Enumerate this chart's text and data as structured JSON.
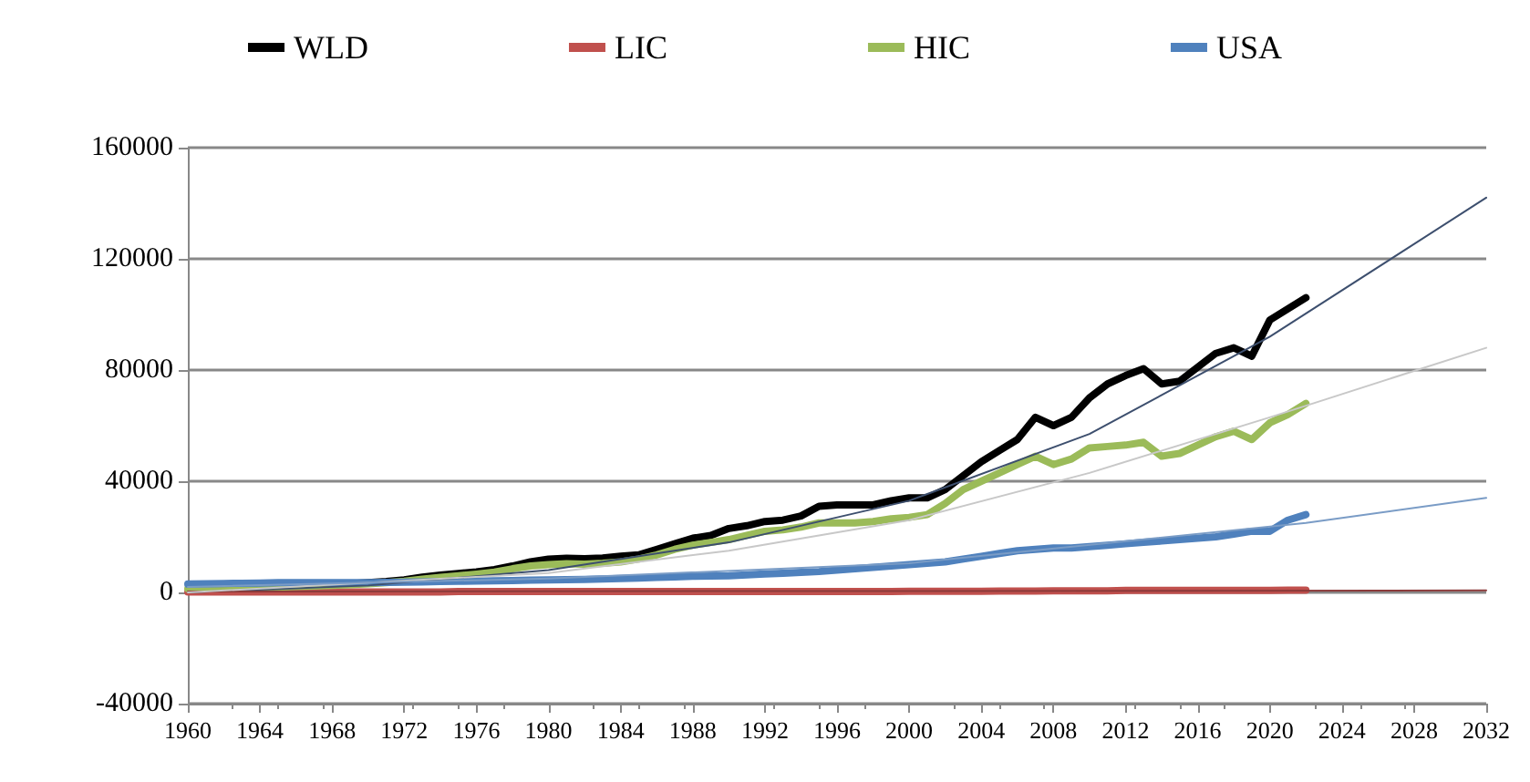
{
  "chart_data": {
    "type": "line",
    "x": [
      1960,
      1961,
      1962,
      1963,
      1964,
      1965,
      1966,
      1967,
      1968,
      1969,
      1970,
      1971,
      1972,
      1973,
      1974,
      1975,
      1976,
      1977,
      1978,
      1979,
      1980,
      1981,
      1982,
      1983,
      1984,
      1985,
      1986,
      1987,
      1988,
      1989,
      1990,
      1991,
      1992,
      1993,
      1994,
      1995,
      1996,
      1997,
      1998,
      1999,
      2000,
      2001,
      2002,
      2003,
      2004,
      2005,
      2006,
      2007,
      2008,
      2009,
      2010,
      2011,
      2012,
      2013,
      2014,
      2015,
      2016,
      2017,
      2018,
      2019,
      2020,
      2021,
      2022
    ],
    "series": [
      {
        "name": "WLD",
        "color": "#000000",
        "values": [
          null,
          null,
          null,
          null,
          2000,
          2200,
          2400,
          2600,
          2800,
          3100,
          3500,
          3900,
          4500,
          5500,
          6200,
          6800,
          7400,
          8200,
          9500,
          11000,
          12000,
          12300,
          12100,
          12400,
          13000,
          13500,
          15500,
          17500,
          19500,
          20500,
          23000,
          24000,
          25500,
          26000,
          27500,
          31000,
          31500,
          31500,
          31500,
          33000,
          34000,
          34000,
          37000,
          42000,
          47000,
          51000,
          55000,
          63000,
          60000,
          63000,
          70000,
          75000,
          78000,
          80500,
          75000,
          76000,
          81000,
          86000,
          88000,
          85000,
          98000,
          102000,
          106000
        ]
      },
      {
        "name": "LIC",
        "color": "#c0504d",
        "values": [
          200,
          200,
          200,
          200,
          200,
          200,
          200,
          200,
          200,
          200,
          200,
          200,
          200,
          200,
          200,
          300,
          300,
          300,
          300,
          300,
          300,
          300,
          300,
          300,
          300,
          300,
          300,
          300,
          300,
          300,
          300,
          300,
          300,
          300,
          300,
          300,
          300,
          300,
          300,
          300,
          400,
          400,
          400,
          400,
          400,
          500,
          500,
          500,
          600,
          600,
          600,
          600,
          700,
          700,
          700,
          700,
          700,
          700,
          700,
          700,
          700,
          800,
          800
        ]
      },
      {
        "name": "HIC",
        "color": "#9bbb59",
        "values": [
          1300,
          1400,
          1500,
          1600,
          1700,
          1900,
          2100,
          2300,
          2500,
          2800,
          3100,
          3500,
          4000,
          4800,
          5400,
          6000,
          6600,
          7300,
          8500,
          9500,
          10000,
          10300,
          10200,
          10500,
          11000,
          12000,
          13500,
          15500,
          17000,
          18000,
          19000,
          20500,
          22000,
          22500,
          23500,
          25000,
          25000,
          25000,
          25500,
          26500,
          27000,
          28000,
          32000,
          37000,
          40000,
          43000,
          46000,
          49000,
          46000,
          48000,
          52000,
          52500,
          53000,
          54000,
          49000,
          50000,
          53000,
          56000,
          58000,
          55000,
          61000,
          64000,
          68000
        ]
      },
      {
        "name": "USA",
        "color": "#4f81bd",
        "values": [
          3000,
          3100,
          3200,
          3300,
          3400,
          3500,
          3500,
          3500,
          3500,
          3500,
          3500,
          3600,
          3700,
          3800,
          3900,
          4000,
          4100,
          4200,
          4300,
          4400,
          4500,
          4600,
          4700,
          4800,
          5000,
          5200,
          5400,
          5600,
          5800,
          5900,
          6000,
          6300,
          6600,
          6900,
          7200,
          7500,
          8000,
          8500,
          9000,
          9500,
          10000,
          10500,
          11000,
          12000,
          13000,
          14000,
          15000,
          15500,
          16000,
          16000,
          16500,
          17000,
          17500,
          18000,
          18500,
          19000,
          19500,
          20000,
          21000,
          22000,
          22000,
          26000,
          28000
        ]
      },
      {
        "type": "line",
        "color": "#3d4f6e",
        "x": [
          1960,
          1970,
          1980,
          1990,
          2000,
          2010,
          2020,
          2032
        ],
        "values": [
          0,
          2500,
          8000,
          18000,
          33000,
          57000,
          92000,
          142000
        ]
      },
      {
        "type": "line",
        "color": "#8b3a3a",
        "x": [
          1960,
          2032
        ],
        "values": [
          300,
          700
        ]
      },
      {
        "type": "line",
        "color": "#c8c8c8",
        "x": [
          1960,
          1980,
          1990,
          2000,
          2010,
          2020,
          2032
        ],
        "values": [
          0,
          7000,
          15000,
          26000,
          43000,
          63000,
          88000
        ]
      },
      {
        "type": "line",
        "color": "#7a9cc6",
        "x": [
          1960,
          1980,
          2000,
          2022,
          2032
        ],
        "values": [
          2000,
          5000,
          10500,
          25000,
          34000
        ]
      }
    ],
    "xlim": [
      1960,
      2032
    ],
    "xticks": [
      1960,
      1964,
      1968,
      1972,
      1976,
      1980,
      1984,
      1988,
      1992,
      1996,
      2000,
      2004,
      2008,
      2012,
      2016,
      2020,
      2024,
      2028,
      2032
    ],
    "ylim": [
      -40000,
      160000
    ],
    "yticks": [
      -40000,
      0,
      40000,
      80000,
      120000,
      160000
    ],
    "grid": "y",
    "legend": "top",
    "marker": "none",
    "line_style": "solid"
  }
}
